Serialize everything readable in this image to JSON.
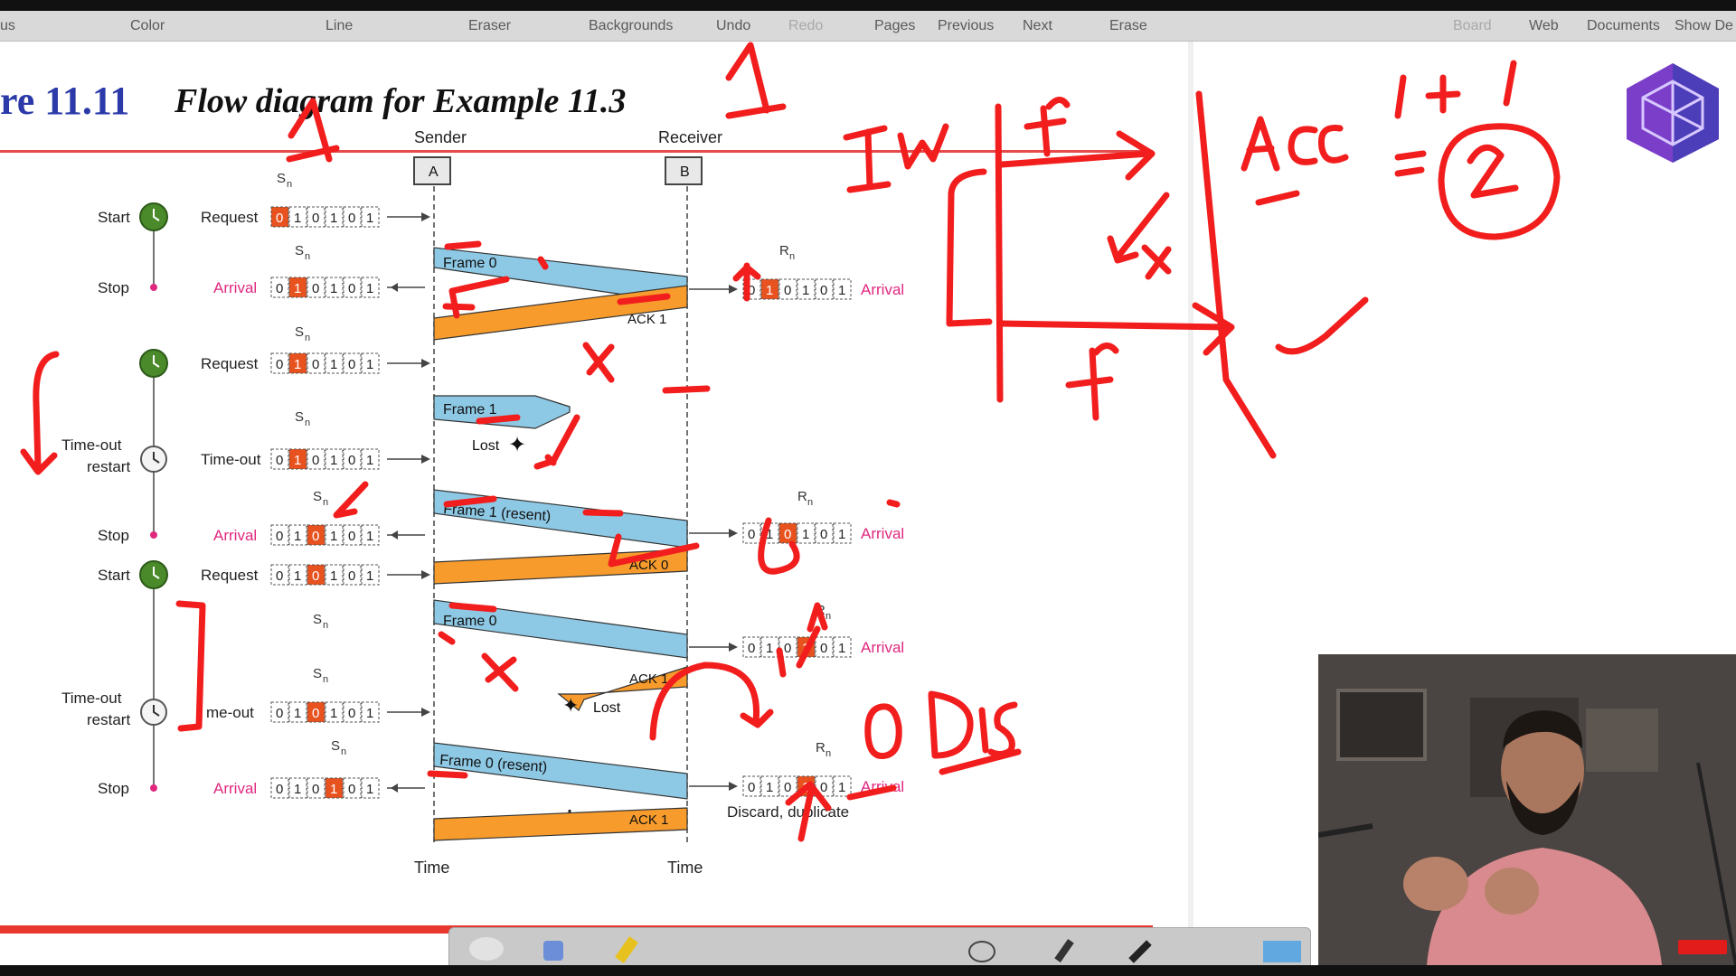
{
  "toolbar": {
    "items": [
      "us",
      "Color",
      "Line",
      "Eraser",
      "Backgrounds",
      "Undo",
      "Redo",
      "Pages",
      "Previous",
      "Next",
      "Erase"
    ],
    "right_items": [
      "Board",
      "Web",
      "Documents",
      "Show De"
    ]
  },
  "figure": {
    "number": "re 11.11",
    "title": "Flow diagram for Example 11.3"
  },
  "diagram": {
    "sender_label": "Sender",
    "receiver_label": "Receiver",
    "sender_box": "A",
    "receiver_box": "B",
    "sn": "S",
    "rn": "R",
    "subscript": "n",
    "time_label": "Time",
    "ellipsis": "⋮",
    "left_events": [
      "Start",
      "Stop",
      "Time-out",
      "restart",
      "Stop",
      "Start",
      "Time-out",
      "restart",
      "Stop"
    ],
    "sender_rows": [
      {
        "label": "Request",
        "bits": [
          "0",
          "1",
          "0",
          "1",
          "0",
          "1"
        ],
        "hl": 0
      },
      {
        "label": "Arrival",
        "bits": [
          "0",
          "1",
          "0",
          "1",
          "0",
          "1"
        ],
        "hl": 1
      },
      {
        "label": "Request",
        "bits": [
          "0",
          "1",
          "0",
          "1",
          "0",
          "1"
        ],
        "hl": 1
      },
      {
        "label": "Time-out",
        "bits": [
          "0",
          "1",
          "0",
          "1",
          "0",
          "1"
        ],
        "hl": 1
      },
      {
        "label": "Arrival",
        "bits": [
          "0",
          "1",
          "0",
          "1",
          "0",
          "1"
        ],
        "hl": 2
      },
      {
        "label": "Request",
        "bits": [
          "0",
          "1",
          "0",
          "1",
          "0",
          "1"
        ],
        "hl": 2
      },
      {
        "label": "me-out",
        "bits": [
          "0",
          "1",
          "0",
          "1",
          "0",
          "1"
        ],
        "hl": 2
      },
      {
        "label": "Arrival",
        "bits": [
          "0",
          "1",
          "0",
          "1",
          "0",
          "1"
        ],
        "hl": 3
      }
    ],
    "receiver_rows": [
      {
        "label": "Arrival",
        "bits": [
          "0",
          "1",
          "0",
          "1",
          "0",
          "1"
        ],
        "hl": 1
      },
      {
        "label": "Arrival",
        "bits": [
          "0",
          "1",
          "0",
          "1",
          "0",
          "1"
        ],
        "hl": 2
      },
      {
        "label": "Arrival",
        "bits": [
          "0",
          "1",
          "0",
          "1",
          "0",
          "1"
        ],
        "hl": 3
      },
      {
        "label": "Arrival",
        "bits": [
          "0",
          "1",
          "0",
          "1",
          "0",
          "1"
        ],
        "hl": 3
      }
    ],
    "frames": [
      "Frame 0",
      "Frame 1",
      "Frame 1 (resent)",
      "Frame 0",
      "Frame 0 (resent)"
    ],
    "acks": [
      "ACK 1",
      "ACK 0",
      "ACK 1",
      "ACK 1"
    ],
    "lost": "Lost",
    "discard": "Discard, duplicate"
  },
  "colors": {
    "frame": "#8dc8e4",
    "ack": "#f79b2c",
    "highlight": "#e8521f",
    "pink": "#e0287f",
    "ink": "#f21d1d",
    "timer": "#4a8a2a"
  },
  "icons": {
    "logo": "hexagon-logo-icon",
    "timer": "timer-clock-icon",
    "subscribe": "youtube-subscribe-icon"
  }
}
